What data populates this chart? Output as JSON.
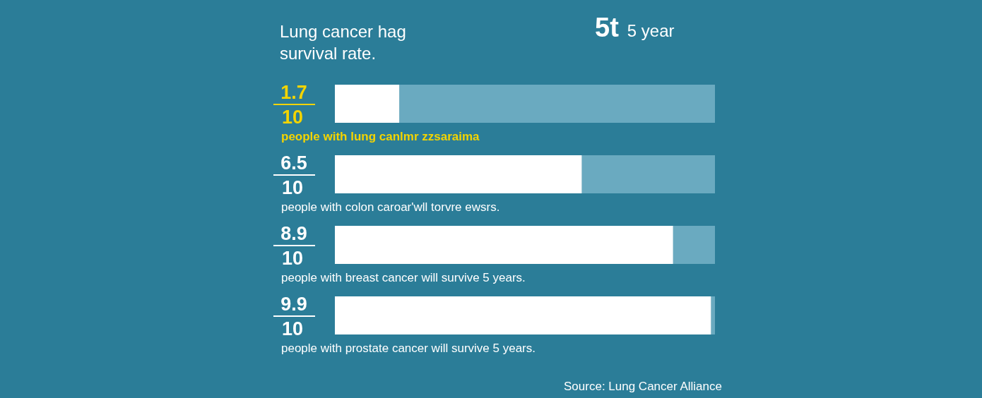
{
  "chart_data": {
    "type": "bar",
    "orientation": "horizontal",
    "stacked": true,
    "title": "Lung cancer hag\nsurvival rate.",
    "subtitle": "5t 5 year",
    "categories": [
      "people with lung canlmr zzsaraima",
      "people with colon caroar'wll torvre ewsrs.",
      "people with breast cancer will survive 5 years.",
      "people with prostate cancer will survive 5 years."
    ],
    "series": [
      {
        "color": "#ffffff",
        "values": [
          1.7,
          6.5,
          8.9,
          9.9
        ],
        "value_labels": [
          "1.7",
          "6.5",
          "8.9",
          "9.9"
        ]
      },
      {
        "color": "#6aaac0",
        "values": [
          8.3,
          3.5,
          1.1,
          0.1
        ]
      }
    ],
    "totals": [
      "10",
      "10",
      "10",
      "10"
    ],
    "tick_labels": "y",
    "annotations": [
      "Source: Lung Cancer Alliance"
    ]
  }
}
